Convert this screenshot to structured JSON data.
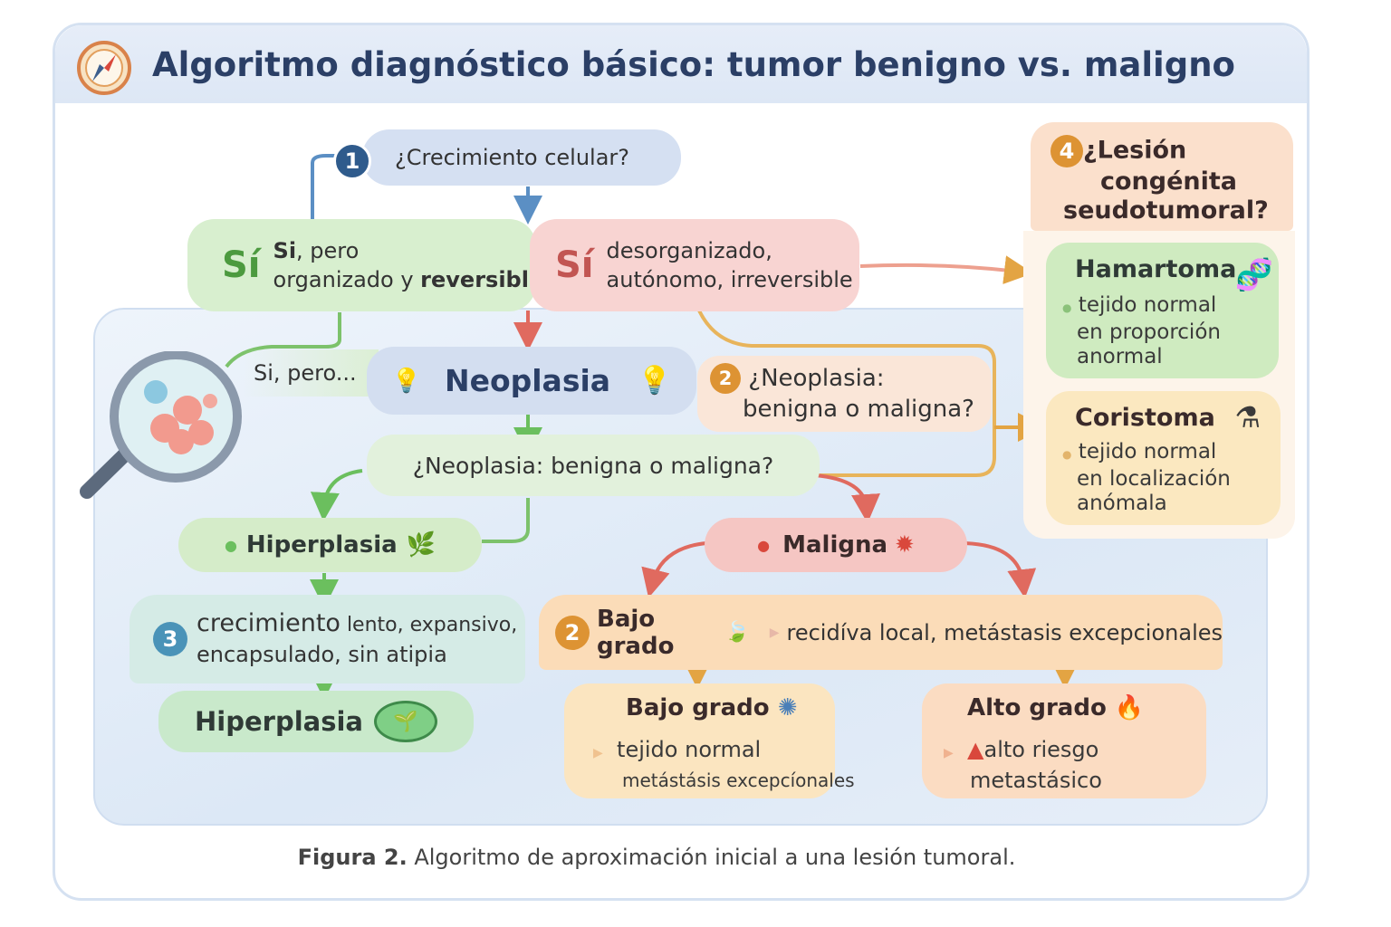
{
  "title": "Algoritmo diagnóstico básico: tumor benigno vs. maligno",
  "step1": {
    "badge": "1",
    "text": "¿Crecimiento celular?"
  },
  "yes_benign": {
    "si": "Sí",
    "line1_bold": "Si",
    "line1": ", pero",
    "line2": "organizado y ",
    "line2_bold": "reversible"
  },
  "yes_malign": {
    "si": "Sí",
    "line1": "desorganizado,",
    "line2": "autónomo, irreversible"
  },
  "side_label": "Si, pero...",
  "neoplasia": "Neoplasia",
  "step2_question": {
    "badge": "2",
    "line1": "¿Neoplasia:",
    "line2": "benigna o maligna?"
  },
  "question_main": "¿Neoplasia: benigna o maligna?",
  "hiperplasia1": "Hiperplasia",
  "maligna": "Maligna",
  "step3": {
    "badge": "3",
    "bold": "crecimiento",
    "line1": " lento, expansivo,",
    "line2": "encapsulado, sin atipia"
  },
  "hiperplasia2": "Hiperplasia",
  "low_grade_band": {
    "badge": "2",
    "title": "Bajo grado",
    "text": "recidíva local, metástasis excepcionales"
  },
  "low_grade": {
    "title": "Bajo grado",
    "line1": "tejido normal",
    "line2": "metástásis excepcíonales"
  },
  "high_grade": {
    "title": "Alto grado",
    "line1": "alto riesgo",
    "line2": "metastásico"
  },
  "step4": {
    "badge": "4",
    "line1": "¿Lesión",
    "line2": "congénita",
    "line3": "seudotumoral?"
  },
  "hamartoma": {
    "title": "Hamartoma",
    "line1": "tejido normal",
    "line2": "en proporción",
    "line3": "anormal"
  },
  "coristoma": {
    "title": "Coristoma",
    "line1": "tejido normal",
    "line2": "en localización",
    "line3": "anómala"
  },
  "caption": {
    "bold": "Figura 2.",
    "text": " Algoritmo de aproximación inicial a una lesión tumoral."
  },
  "colors": {
    "title": "#2b3f66",
    "blue": "#2f5b8c",
    "green": "#6bbf5e",
    "red": "#e06a5f",
    "orange": "#e3a443"
  }
}
